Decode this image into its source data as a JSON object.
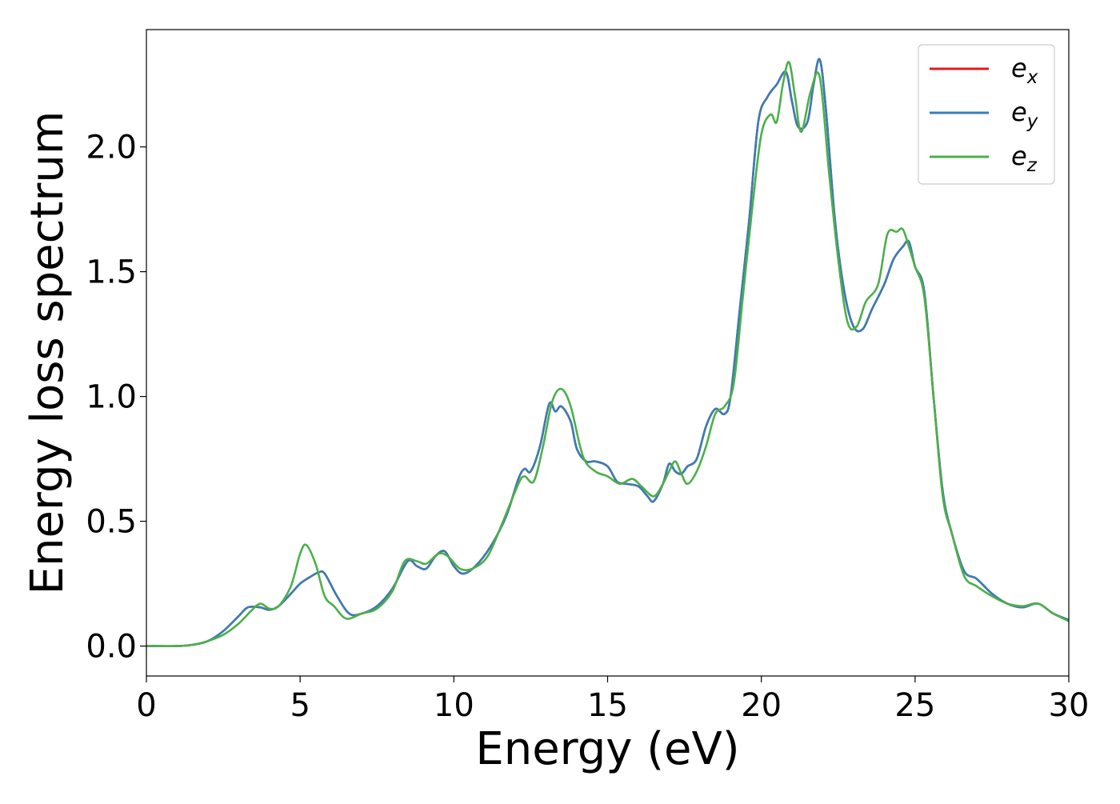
{
  "chart_data": {
    "type": "line",
    "title": "",
    "xlabel": "Energy (eV)",
    "ylabel": "Energy loss spectrum",
    "xlim": [
      0,
      30
    ],
    "ylim": [
      -0.12,
      2.47
    ],
    "xticks": [
      0,
      5,
      10,
      15,
      20,
      25,
      30
    ],
    "xtick_labels": [
      "0",
      "5",
      "10",
      "15",
      "20",
      "25",
      "30"
    ],
    "yticks": [
      0.0,
      0.5,
      1.0,
      1.5,
      2.0
    ],
    "ytick_labels": [
      "0.0",
      "0.5",
      "1.0",
      "1.5",
      "2.0"
    ],
    "grid": false,
    "legend_position": "top-right",
    "series": [
      {
        "name": "e_x",
        "label_base": "e",
        "label_sub": "x",
        "color": "#e41a1c",
        "x": [
          0,
          1,
          1.5,
          2,
          2.5,
          3,
          3.3,
          3.7,
          4,
          4.3,
          4.7,
          5,
          5.3,
          5.6,
          5.8,
          6.2,
          6.6,
          7,
          7.5,
          8,
          8.5,
          8.8,
          9.1,
          9.4,
          9.7,
          10,
          10.3,
          10.7,
          11.2,
          11.7,
          12.1,
          12.3,
          12.5,
          12.8,
          13.1,
          13.3,
          13.5,
          13.8,
          14,
          14.3,
          14.6,
          15,
          15.3,
          15.6,
          16,
          16.3,
          16.5,
          16.8,
          17,
          17.2,
          17.4,
          17.6,
          17.9,
          18.2,
          18.5,
          18.8,
          19,
          19.3,
          19.6,
          19.9,
          20.2,
          20.5,
          20.8,
          21,
          21.2,
          21.5,
          21.7,
          21.9,
          22.1,
          22.4,
          22.7,
          23,
          23.3,
          23.6,
          24,
          24.3,
          24.6,
          24.8,
          25,
          25.3,
          25.6,
          25.9,
          26.2,
          26.6,
          27,
          27.5,
          28,
          28.5,
          29,
          29.5,
          30
        ],
        "y": [
          0,
          0,
          0.005,
          0.02,
          0.06,
          0.12,
          0.155,
          0.155,
          0.145,
          0.16,
          0.21,
          0.25,
          0.275,
          0.295,
          0.29,
          0.2,
          0.13,
          0.13,
          0.16,
          0.23,
          0.34,
          0.32,
          0.31,
          0.36,
          0.38,
          0.32,
          0.29,
          0.32,
          0.4,
          0.52,
          0.67,
          0.71,
          0.7,
          0.8,
          0.97,
          0.94,
          0.96,
          0.9,
          0.79,
          0.74,
          0.74,
          0.72,
          0.66,
          0.65,
          0.64,
          0.6,
          0.58,
          0.65,
          0.73,
          0.7,
          0.69,
          0.72,
          0.75,
          0.88,
          0.95,
          0.93,
          1.0,
          1.35,
          1.7,
          2.1,
          2.2,
          2.25,
          2.3,
          2.18,
          2.08,
          2.1,
          2.25,
          2.35,
          2.15,
          1.7,
          1.42,
          1.28,
          1.27,
          1.35,
          1.45,
          1.55,
          1.6,
          1.62,
          1.52,
          1.42,
          1.0,
          0.62,
          0.45,
          0.3,
          0.27,
          0.21,
          0.17,
          0.155,
          0.17,
          0.13,
          0.105
        ]
      },
      {
        "name": "e_y",
        "label_base": "e",
        "label_sub": "y",
        "color": "#377eb8",
        "x": [
          0,
          1,
          1.5,
          2,
          2.5,
          3,
          3.3,
          3.7,
          4,
          4.3,
          4.7,
          5,
          5.3,
          5.6,
          5.8,
          6.2,
          6.6,
          7,
          7.5,
          8,
          8.5,
          8.8,
          9.1,
          9.4,
          9.7,
          10,
          10.3,
          10.7,
          11.2,
          11.7,
          12.1,
          12.3,
          12.5,
          12.8,
          13.1,
          13.3,
          13.5,
          13.8,
          14,
          14.3,
          14.6,
          15,
          15.3,
          15.6,
          16,
          16.3,
          16.5,
          16.8,
          17,
          17.2,
          17.4,
          17.6,
          17.9,
          18.2,
          18.5,
          18.8,
          19,
          19.3,
          19.6,
          19.9,
          20.2,
          20.5,
          20.8,
          21,
          21.2,
          21.5,
          21.7,
          21.9,
          22.1,
          22.4,
          22.7,
          23,
          23.3,
          23.6,
          24,
          24.3,
          24.6,
          24.8,
          25,
          25.3,
          25.6,
          25.9,
          26.2,
          26.6,
          27,
          27.5,
          28,
          28.5,
          29,
          29.5,
          30
        ],
        "y": [
          0,
          0,
          0.005,
          0.02,
          0.06,
          0.12,
          0.155,
          0.155,
          0.145,
          0.16,
          0.21,
          0.25,
          0.275,
          0.295,
          0.29,
          0.2,
          0.13,
          0.13,
          0.16,
          0.23,
          0.34,
          0.32,
          0.31,
          0.36,
          0.38,
          0.32,
          0.29,
          0.32,
          0.4,
          0.52,
          0.67,
          0.71,
          0.7,
          0.8,
          0.97,
          0.94,
          0.96,
          0.9,
          0.79,
          0.74,
          0.74,
          0.72,
          0.66,
          0.65,
          0.64,
          0.6,
          0.58,
          0.65,
          0.73,
          0.7,
          0.69,
          0.72,
          0.75,
          0.88,
          0.95,
          0.93,
          1.0,
          1.35,
          1.7,
          2.1,
          2.2,
          2.25,
          2.3,
          2.18,
          2.08,
          2.1,
          2.25,
          2.35,
          2.15,
          1.7,
          1.42,
          1.28,
          1.27,
          1.35,
          1.45,
          1.55,
          1.6,
          1.62,
          1.52,
          1.42,
          1.0,
          0.62,
          0.45,
          0.3,
          0.27,
          0.21,
          0.17,
          0.155,
          0.17,
          0.13,
          0.105
        ]
      },
      {
        "name": "e_z",
        "label_base": "e",
        "label_sub": "z",
        "color": "#4daf4a",
        "x": [
          0,
          1,
          1.5,
          2,
          2.5,
          3,
          3.4,
          3.7,
          4,
          4.3,
          4.7,
          5,
          5.2,
          5.5,
          5.8,
          6.1,
          6.5,
          7,
          7.5,
          8,
          8.4,
          8.8,
          9.1,
          9.5,
          9.8,
          10.2,
          10.6,
          11.1,
          11.6,
          12.1,
          12.3,
          12.6,
          12.9,
          13.2,
          13.5,
          13.8,
          14.2,
          14.6,
          15,
          15.4,
          15.8,
          16.1,
          16.5,
          16.8,
          17,
          17.2,
          17.4,
          17.6,
          17.9,
          18.2,
          18.5,
          18.8,
          19.1,
          19.4,
          19.7,
          20,
          20.3,
          20.5,
          20.7,
          20.9,
          21.1,
          21.3,
          21.6,
          21.9,
          22.2,
          22.5,
          22.8,
          23.1,
          23.4,
          23.8,
          24.1,
          24.4,
          24.6,
          24.8,
          25,
          25.3,
          25.6,
          25.9,
          26.2,
          26.6,
          27,
          27.5,
          28,
          28.5,
          29,
          29.5,
          30
        ],
        "y": [
          0,
          0,
          0.005,
          0.02,
          0.045,
          0.09,
          0.14,
          0.17,
          0.15,
          0.16,
          0.24,
          0.37,
          0.405,
          0.33,
          0.2,
          0.16,
          0.11,
          0.13,
          0.15,
          0.22,
          0.34,
          0.34,
          0.33,
          0.37,
          0.36,
          0.31,
          0.31,
          0.36,
          0.5,
          0.65,
          0.68,
          0.66,
          0.8,
          0.98,
          1.03,
          0.96,
          0.76,
          0.7,
          0.68,
          0.65,
          0.67,
          0.64,
          0.6,
          0.65,
          0.7,
          0.74,
          0.69,
          0.65,
          0.7,
          0.8,
          0.93,
          0.96,
          1.05,
          1.4,
          1.75,
          2.05,
          2.13,
          2.1,
          2.25,
          2.34,
          2.2,
          2.06,
          2.22,
          2.28,
          1.9,
          1.55,
          1.3,
          1.28,
          1.38,
          1.45,
          1.65,
          1.66,
          1.67,
          1.6,
          1.52,
          1.4,
          1.0,
          0.6,
          0.45,
          0.28,
          0.24,
          0.2,
          0.17,
          0.16,
          0.17,
          0.13,
          0.1
        ]
      }
    ]
  }
}
